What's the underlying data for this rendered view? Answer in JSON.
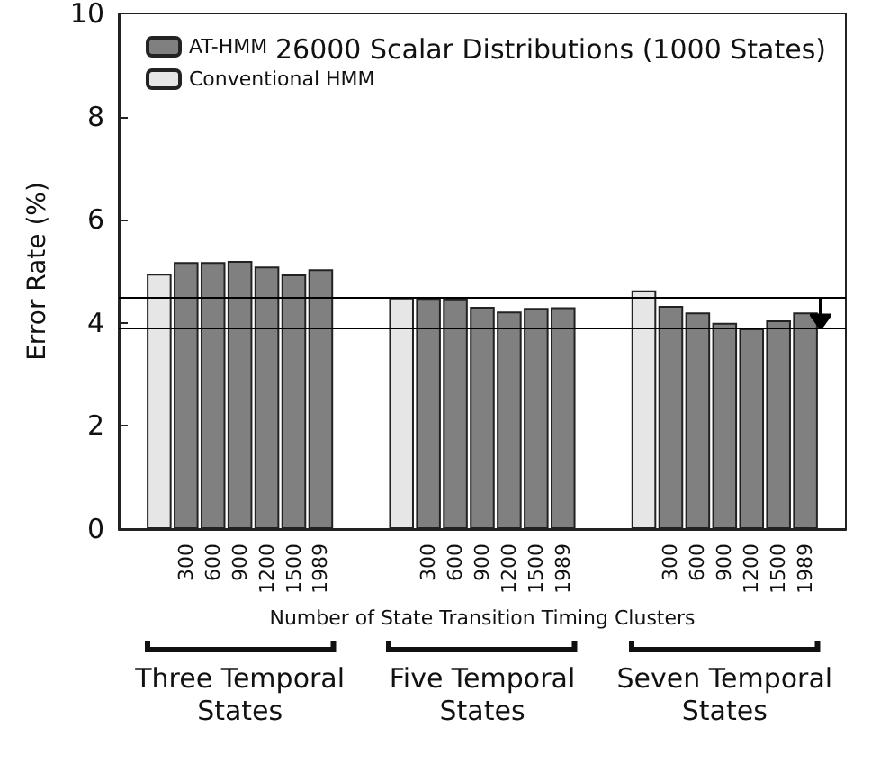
{
  "chart_data": {
    "type": "bar",
    "title": "26000 Scalar Distributions (1000 States)",
    "xlabel": "Number of State Transition Timing Clusters",
    "ylabel": "Error Rate (%)",
    "categories": [
      null,
      null,
      "300",
      "600",
      "900",
      "1200",
      "1500",
      "1989",
      null,
      null,
      null,
      "300",
      "600",
      "900",
      "1200",
      "1500",
      "1989",
      null,
      null,
      null,
      "300",
      "600",
      "900",
      "1200",
      "1500",
      "1989",
      null
    ],
    "series": [
      {
        "name": "AT-HMM",
        "color": "#808080",
        "values": [
          null,
          null,
          5.18,
          5.18,
          5.2,
          5.09,
          4.94,
          5.04,
          null,
          null,
          null,
          4.48,
          4.47,
          4.31,
          4.22,
          4.29,
          4.3,
          null,
          null,
          null,
          4.33,
          4.2,
          4.0,
          3.89,
          4.05,
          4.2,
          null
        ]
      },
      {
        "name": "Conventional HMM",
        "color": "#e6e6e6",
        "values": [
          null,
          4.95,
          null,
          null,
          null,
          null,
          null,
          null,
          null,
          null,
          4.49,
          null,
          null,
          null,
          null,
          null,
          null,
          null,
          null,
          4.63,
          null,
          null,
          null,
          null,
          null,
          null,
          null
        ]
      }
    ],
    "ylim": [
      0,
      10
    ],
    "yticks": [
      0,
      2,
      4,
      6,
      8,
      10
    ],
    "grid": false,
    "legend": "top left",
    "ref_lines": [
      {
        "axis": "y",
        "value": 4.5,
        "color": "#000000"
      },
      {
        "axis": "y",
        "value": 3.9,
        "color": "#000000"
      }
    ],
    "annotations": [
      "Three Temporal States",
      "Five Temporal States",
      "Seven Temporal States"
    ]
  }
}
